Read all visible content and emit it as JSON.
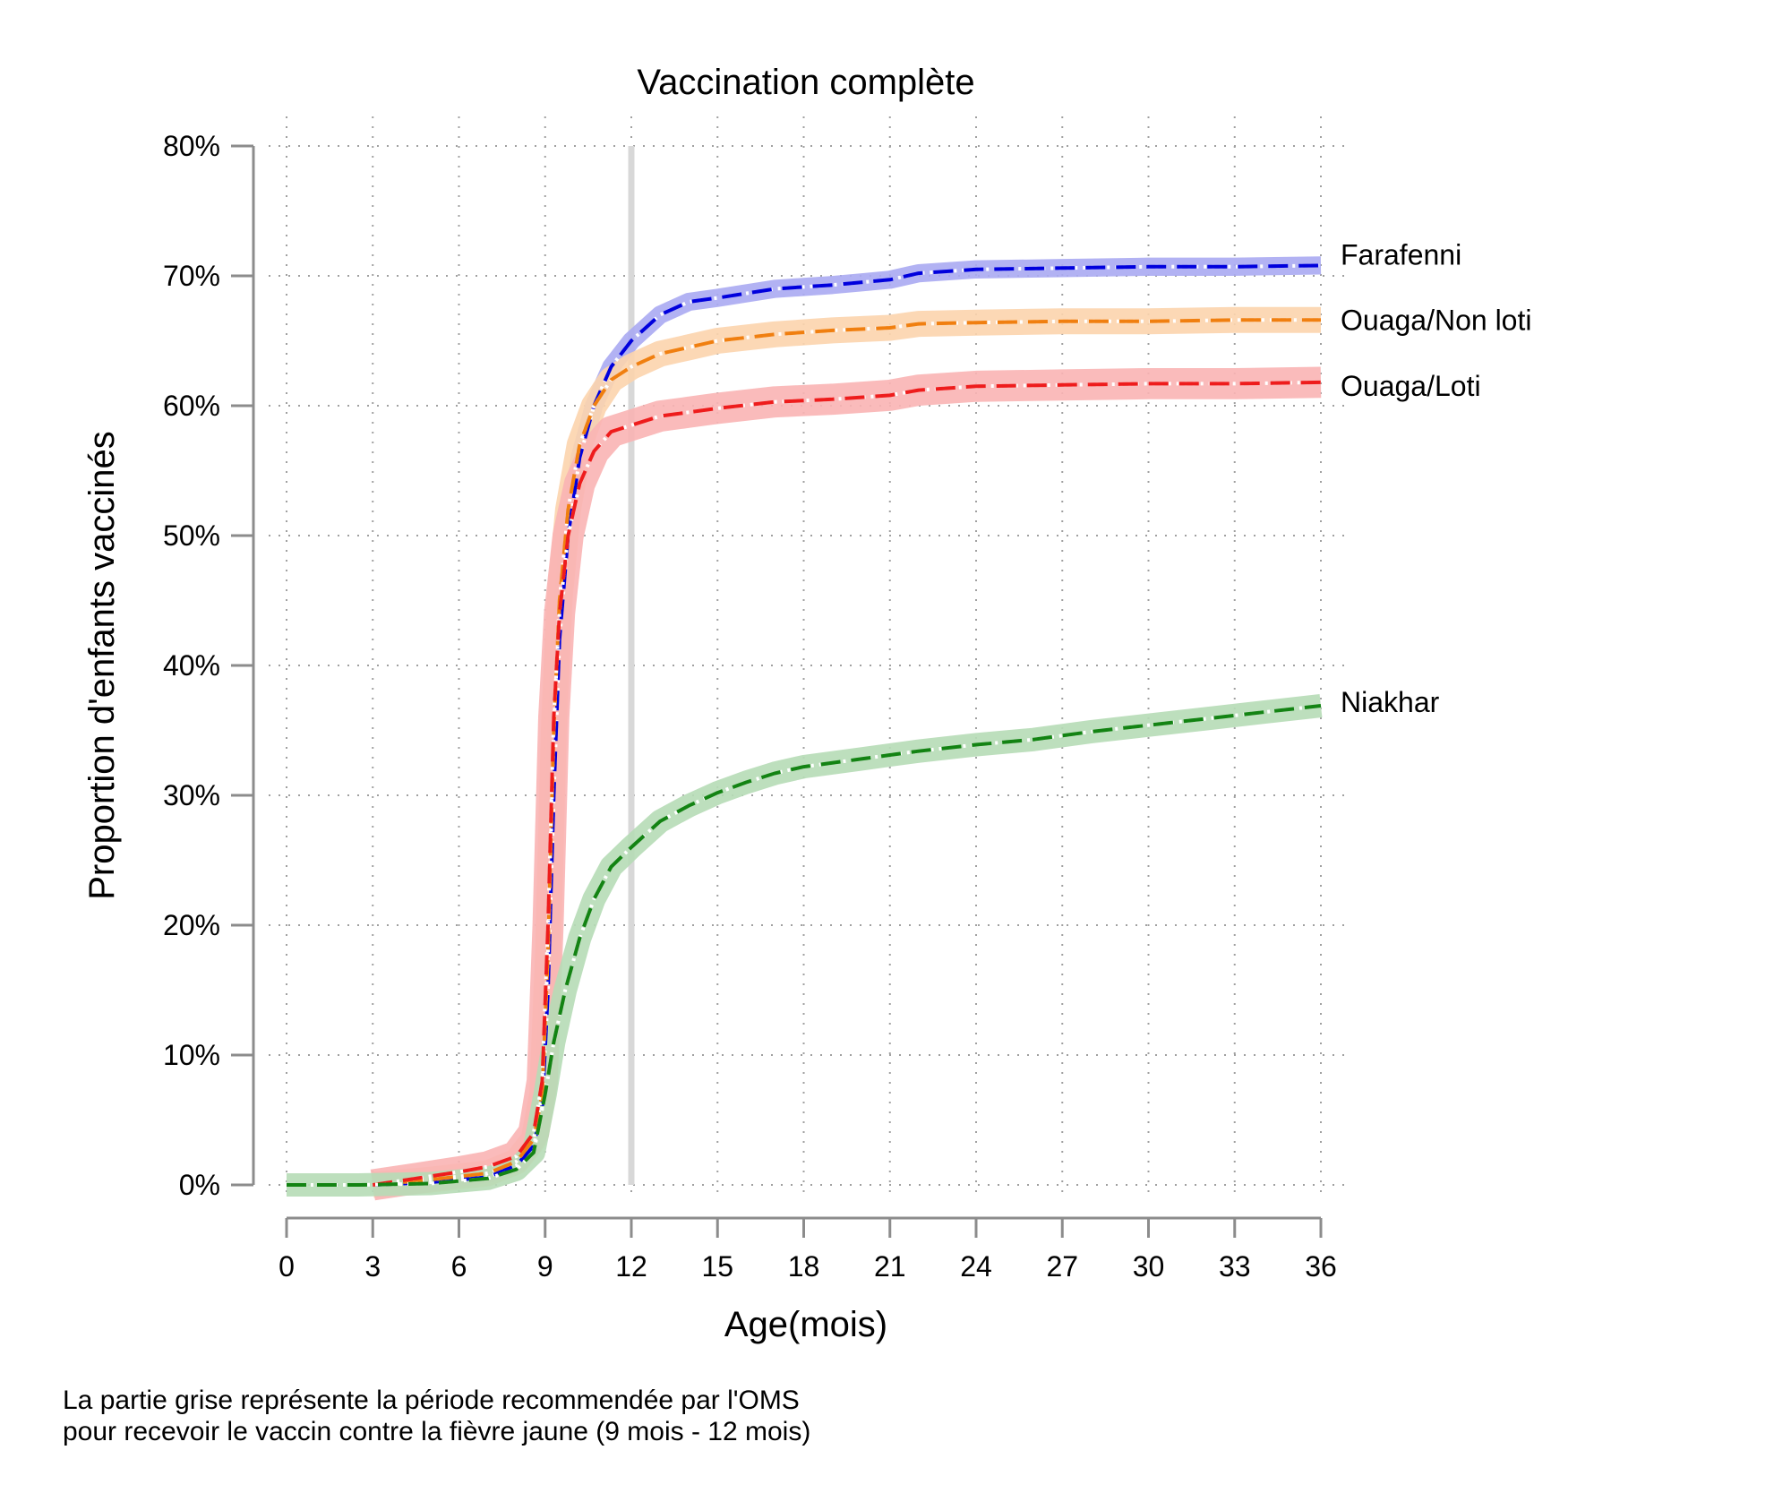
{
  "chart_data": {
    "type": "line",
    "title": "Vaccination complète",
    "xlabel": "Age(mois)",
    "ylabel": "Proportion d'enfants vaccinés",
    "xlim": [
      0,
      36
    ],
    "ylim": [
      0,
      80
    ],
    "x_ticks": [
      0,
      3,
      6,
      9,
      12,
      15,
      18,
      21,
      24,
      27,
      30,
      33,
      36
    ],
    "x_tick_labels": [
      "0",
      "3",
      "6",
      "9",
      "12",
      "15",
      "18",
      "21",
      "24",
      "27",
      "30",
      "33",
      "36"
    ],
    "y_ticks": [
      0,
      10,
      20,
      30,
      40,
      50,
      60,
      70,
      80
    ],
    "y_tick_labels": [
      "0%",
      "10%",
      "20%",
      "30%",
      "40%",
      "50%",
      "60%",
      "70%",
      "80%"
    ],
    "grid": true,
    "reference_line_x": 12,
    "series": [
      {
        "name": "Farafenni",
        "color": "#0000dd",
        "band_color": "#aaaaf2",
        "band_halfwidth": 0.7,
        "points": [
          [
            3,
            0
          ],
          [
            5,
            0.2
          ],
          [
            7,
            0.6
          ],
          [
            8,
            1.5
          ],
          [
            8.6,
            3
          ],
          [
            8.9,
            6
          ],
          [
            9.1,
            15
          ],
          [
            9.3,
            30
          ],
          [
            9.5,
            42
          ],
          [
            9.8,
            50
          ],
          [
            10.2,
            56
          ],
          [
            10.7,
            60
          ],
          [
            11.3,
            63
          ],
          [
            12,
            65
          ],
          [
            13,
            67
          ],
          [
            14,
            68
          ],
          [
            15,
            68.3
          ],
          [
            17,
            69
          ],
          [
            19,
            69.3
          ],
          [
            20,
            69.5
          ],
          [
            21,
            69.7
          ],
          [
            22,
            70.2
          ],
          [
            24,
            70.5
          ],
          [
            27,
            70.6
          ],
          [
            30,
            70.7
          ],
          [
            33,
            70.7
          ],
          [
            36,
            70.8
          ]
        ]
      },
      {
        "name": "Ouaga/Non loti",
        "color": "#f07f10",
        "band_color": "#fcd4ad",
        "band_halfwidth": 1.0,
        "points": [
          [
            3,
            0
          ],
          [
            5,
            0.4
          ],
          [
            7,
            0.9
          ],
          [
            8,
            1.8
          ],
          [
            8.6,
            3.5
          ],
          [
            8.9,
            7
          ],
          [
            9.1,
            18
          ],
          [
            9.3,
            35
          ],
          [
            9.5,
            45
          ],
          [
            9.8,
            52
          ],
          [
            10.2,
            57
          ],
          [
            10.7,
            60
          ],
          [
            11.3,
            62
          ],
          [
            12,
            63
          ],
          [
            13,
            64
          ],
          [
            14,
            64.5
          ],
          [
            15,
            65
          ],
          [
            17,
            65.5
          ],
          [
            19,
            65.8
          ],
          [
            21,
            66
          ],
          [
            22,
            66.3
          ],
          [
            24,
            66.4
          ],
          [
            27,
            66.5
          ],
          [
            30,
            66.5
          ],
          [
            33,
            66.6
          ],
          [
            36,
            66.6
          ]
        ]
      },
      {
        "name": "Ouaga/Loti",
        "color": "#ee1c1c",
        "band_color": "#f9b4b4",
        "band_halfwidth": 1.2,
        "points": [
          [
            3,
            0
          ],
          [
            4.5,
            0.5
          ],
          [
            6,
            1
          ],
          [
            7,
            1.4
          ],
          [
            8,
            2.2
          ],
          [
            8.6,
            4
          ],
          [
            8.9,
            8
          ],
          [
            9.1,
            20
          ],
          [
            9.3,
            36
          ],
          [
            9.5,
            44
          ],
          [
            9.8,
            50
          ],
          [
            10.2,
            54
          ],
          [
            10.7,
            56.5
          ],
          [
            11.3,
            58
          ],
          [
            12,
            58.5
          ],
          [
            13,
            59.2
          ],
          [
            14,
            59.5
          ],
          [
            15,
            59.8
          ],
          [
            17,
            60.3
          ],
          [
            19,
            60.5
          ],
          [
            21,
            60.8
          ],
          [
            22,
            61.2
          ],
          [
            24,
            61.5
          ],
          [
            27,
            61.6
          ],
          [
            30,
            61.7
          ],
          [
            33,
            61.7
          ],
          [
            36,
            61.8
          ]
        ]
      },
      {
        "name": "Niakhar",
        "color": "#138313",
        "band_color": "#b6dcb6",
        "band_halfwidth": 0.9,
        "points": [
          [
            0,
            0
          ],
          [
            2.5,
            0
          ],
          [
            5,
            0.1
          ],
          [
            7,
            0.5
          ],
          [
            8,
            1.2
          ],
          [
            8.6,
            2.5
          ],
          [
            9,
            7
          ],
          [
            9.3,
            11
          ],
          [
            9.7,
            15
          ],
          [
            10.2,
            19
          ],
          [
            10.7,
            22
          ],
          [
            11.3,
            24.5
          ],
          [
            12,
            26
          ],
          [
            13,
            28
          ],
          [
            14,
            29.2
          ],
          [
            15,
            30.2
          ],
          [
            16,
            31
          ],
          [
            17,
            31.7
          ],
          [
            18,
            32.2
          ],
          [
            20,
            32.8
          ],
          [
            21,
            33.1
          ],
          [
            22,
            33.4
          ],
          [
            24,
            33.9
          ],
          [
            26,
            34.3
          ],
          [
            28,
            34.9
          ],
          [
            30,
            35.4
          ],
          [
            32,
            35.9
          ],
          [
            34,
            36.4
          ],
          [
            36,
            36.9
          ]
        ]
      }
    ],
    "footnote": [
      "La partie grise représente la période recommendée par l'OMS",
      "pour recevoir le vaccin contre la fièvre jaune  (9 mois - 12 mois)"
    ]
  }
}
